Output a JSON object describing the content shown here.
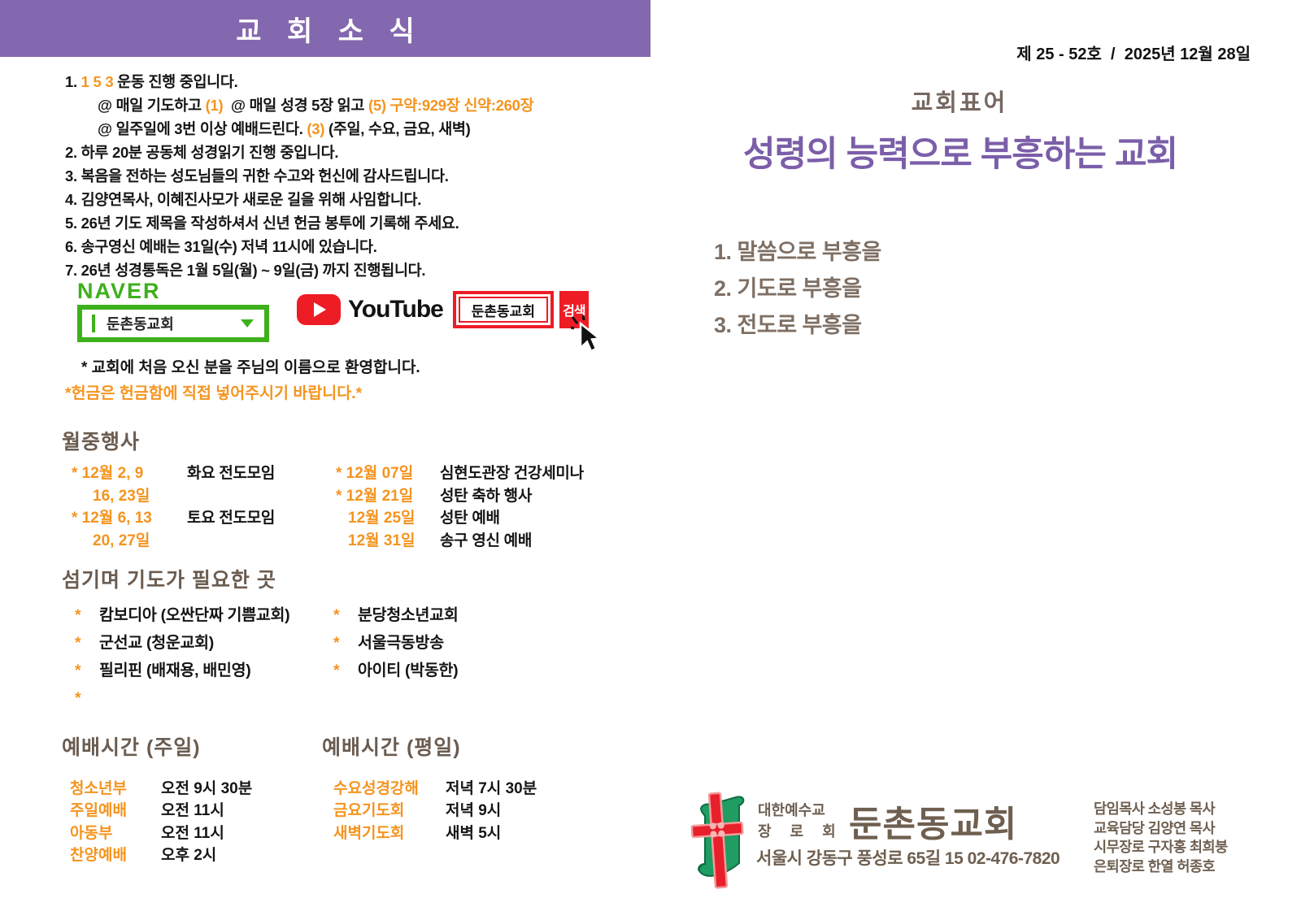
{
  "colors": {
    "banner_purple": "#8468AF",
    "title_purple": "#7B5EA9",
    "accent_orange": "#F5941F",
    "heading_brown": "#6B5C50",
    "motto_brown": "#7E6F64",
    "footer_brown": "#6E5F50",
    "naver_green": "#3EB01B",
    "youtube_red": "#EE1C25"
  },
  "icons": {
    "text_cursor": "text-cursor-icon",
    "dropdown_arrow": "chevron-down-icon",
    "youtube_play": "play-icon",
    "mouse_cursor": "arrow-pointer-icon",
    "church_logo": "cross-scroll-logo"
  },
  "left": {
    "banner_title": "교 회 소 식",
    "announcements": [
      {
        "indent": false,
        "segments": [
          {
            "t": "1. ",
            "c": ""
          },
          {
            "t": "1 5 3 ",
            "c": "orange"
          },
          {
            "t": "운동 진행 중입니다.",
            "c": ""
          }
        ]
      },
      {
        "indent": true,
        "segments": [
          {
            "t": "@ 매일 기도하고 ",
            "c": ""
          },
          {
            "t": "(1)",
            "c": "orange"
          },
          {
            "t": "  @ 매일 성경 5장 읽고 ",
            "c": ""
          },
          {
            "t": "(5) 구약:929장 신약:260장",
            "c": "orange"
          }
        ]
      },
      {
        "indent": true,
        "segments": [
          {
            "t": "@ 일주일에 3번 이상 예배드린다. ",
            "c": ""
          },
          {
            "t": "(3)",
            "c": "orange"
          },
          {
            "t": " (주일, 수요, 금요, 새벽)",
            "c": ""
          }
        ]
      },
      {
        "indent": false,
        "segments": [
          {
            "t": "2. 하루 20분 공동체 성경읽기 진행 중입니다.",
            "c": ""
          }
        ]
      },
      {
        "indent": false,
        "segments": [
          {
            "t": "3. 복음을 전하는 성도님들의 귀한 수고와 헌신에 감사드립니다.",
            "c": ""
          }
        ]
      },
      {
        "indent": false,
        "segments": [
          {
            "t": "4. 김양연목사, 이혜진사모가 새로운 길을 위해 사임합니다.",
            "c": ""
          }
        ]
      },
      {
        "indent": false,
        "segments": [
          {
            "t": "5. 26년 기도 제목을 작성하셔서 신년 헌금 봉투에 기록해 주세요.",
            "c": ""
          }
        ]
      },
      {
        "indent": false,
        "segments": [
          {
            "t": "6. 송구영신 예배는 31일(수) 저녁 11시에 있습니다.",
            "c": ""
          }
        ]
      },
      {
        "indent": false,
        "segments": [
          {
            "t": "7. 26년 성경통독은 1월 5일(월) ~ 9일(금) 까지 진행됩니다.",
            "c": ""
          }
        ]
      }
    ],
    "search": {
      "naver_logo": "NAVER",
      "naver_query": "둔촌동교회",
      "youtube_logo": "YouTube",
      "youtube_query": "둔촌동교회",
      "search_button": "검색"
    },
    "welcome_note": "* 교회에 처음 오신 분을 주님의 이름으로 환영합니다.",
    "offering_note": "*헌금은 헌금함에 직접 넣어주시기 바랍니다.*",
    "monthly_events": {
      "heading": "월중행사",
      "col_left": [
        {
          "date": "* 12월 2, 9",
          "event": "화요 전도모임",
          "indent": false
        },
        {
          "date": "16, 23일",
          "event": "",
          "indent": true
        },
        {
          "date": "* 12월 6, 13",
          "event": "토요 전도모임",
          "indent": false
        },
        {
          "date": "20, 27일",
          "event": "",
          "indent": true
        }
      ],
      "col_right": [
        {
          "date": "* 12월 07일",
          "event": "심현도관장 건강세미나",
          "indent": false
        },
        {
          "date": "* 12월 21일",
          "event": "성탄 축하 행사",
          "indent": false
        },
        {
          "date": "12월 25일",
          "event": "성탄 예배",
          "indent": true
        },
        {
          "date": "12월 31일",
          "event": "송구 영신 예배",
          "indent": true
        }
      ]
    },
    "prayer": {
      "heading": "섬기며 기도가 필요한 곳",
      "star": "*",
      "col_left": [
        "캄보디아 (오싼단짜 기쁨교회)",
        "군선교 (청운교회)",
        "필리핀 (배재용, 배민영)",
        ""
      ],
      "col_right": [
        "분당청소년교회",
        "서울극동방송",
        "아이티 (박동한)"
      ]
    },
    "worship_sunday": {
      "heading": "예배시간 (주일)",
      "rows": [
        {
          "label": "청소년부",
          "time": "오전 9시 30분"
        },
        {
          "label": "주일예배",
          "time": "오전 11시"
        },
        {
          "label": "아동부",
          "time": "오전 11시"
        },
        {
          "label": "찬양예배",
          "time": "오후 2시"
        }
      ]
    },
    "worship_weekday": {
      "heading": "예배시간 (평일)",
      "rows": [
        {
          "label": "수요성경강해",
          "time": "저녁 7시 30분"
        },
        {
          "label": "금요기도회",
          "time": "저녁 9시"
        },
        {
          "label": "새벽기도회",
          "time": "새벽 5시"
        }
      ]
    }
  },
  "right": {
    "issue_line": "제 25 - 52호  /  2025년 12월 28일",
    "motto_heading": "교회표어",
    "motto_title": "성령의 능력으로 부흥하는 교회",
    "motto_items": [
      "1. 말씀으로 부흥을",
      "2. 기도로 부흥을",
      "3. 전도로 부흥을"
    ],
    "footer": {
      "denomination_line1": "대한예수교",
      "denomination_line2": "장 로 회",
      "church_name": "둔촌동교회",
      "address": "서울시 강동구 풍성로 65길 15 02-476-7820",
      "staff": [
        "담임목사 소성봉 목사",
        "교육담당 김양연 목사",
        "시무장로 구자홍 최희붕",
        "은퇴장로 한열 허종호"
      ]
    }
  }
}
